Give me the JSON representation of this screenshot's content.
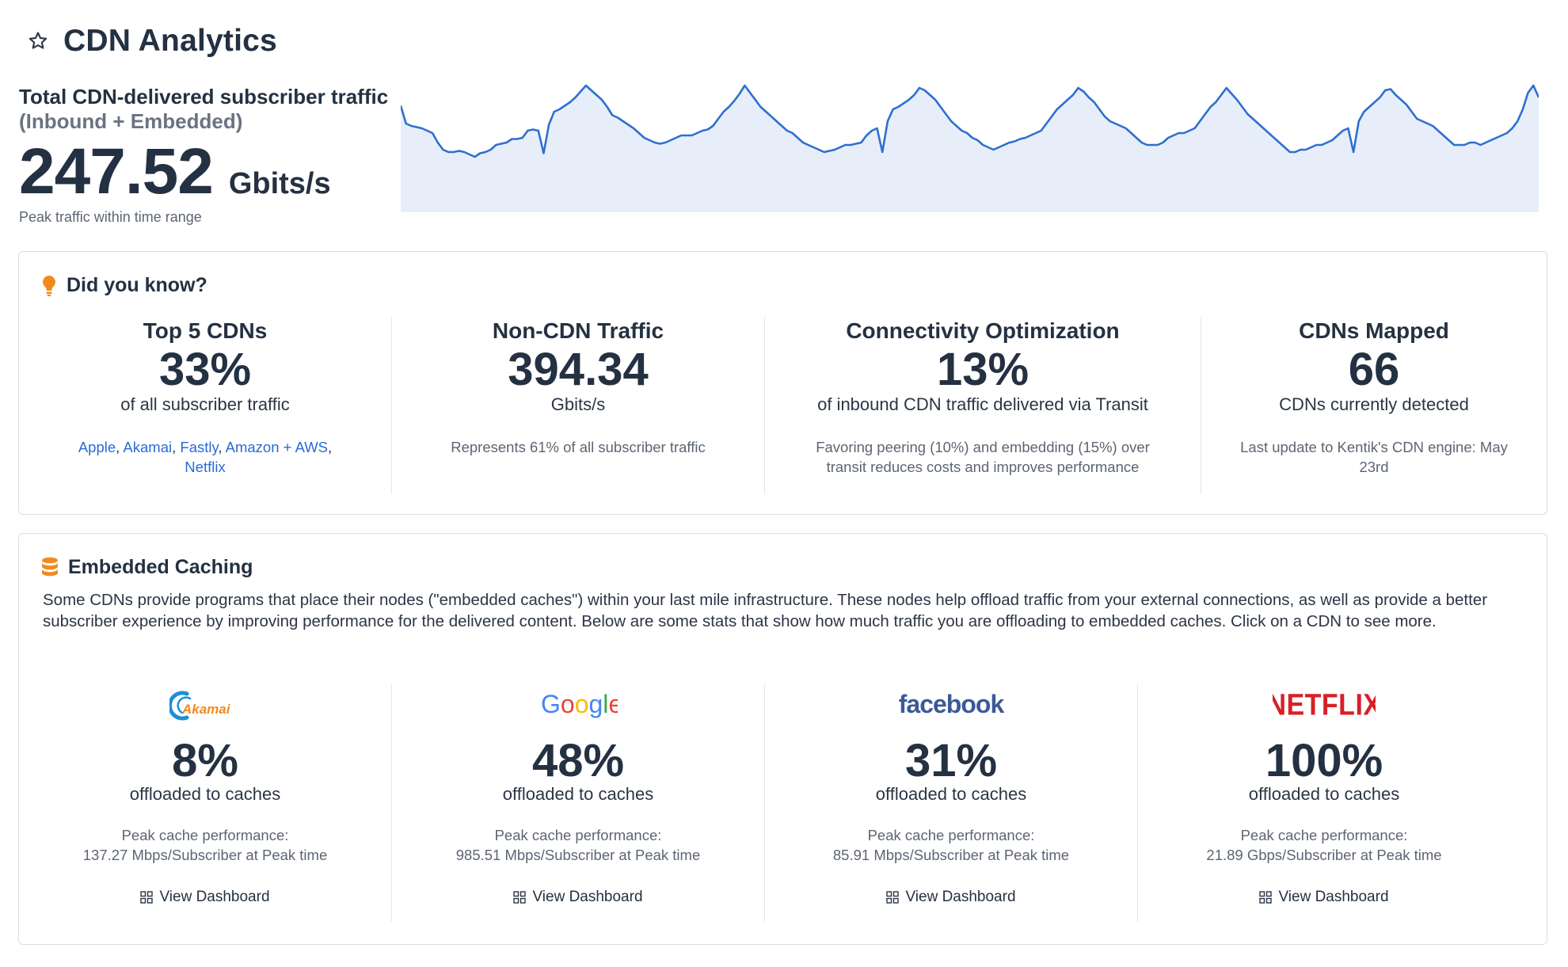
{
  "header": {
    "title": "CDN Analytics"
  },
  "summary": {
    "title_line1": "Total CDN-delivered subscriber traffic",
    "title_line2": "(Inbound + Embedded)",
    "value": "247.52",
    "unit": "Gbits/s",
    "caption": "Peak traffic within time range"
  },
  "sparkline": {
    "color": "#2f6fcf",
    "fill": "#e8eef9",
    "values": [
      0.83,
      0.68,
      0.66,
      0.65,
      0.64,
      0.62,
      0.6,
      0.52,
      0.46,
      0.44,
      0.44,
      0.45,
      0.44,
      0.42,
      0.4,
      0.43,
      0.44,
      0.46,
      0.5,
      0.51,
      0.52,
      0.55,
      0.55,
      0.56,
      0.62,
      0.63,
      0.62,
      0.43,
      0.67,
      0.78,
      0.8,
      0.83,
      0.86,
      0.9,
      0.95,
      1.0,
      0.96,
      0.92,
      0.88,
      0.82,
      0.75,
      0.73,
      0.7,
      0.67,
      0.64,
      0.6,
      0.56,
      0.54,
      0.52,
      0.51,
      0.52,
      0.54,
      0.56,
      0.58,
      0.58,
      0.58,
      0.6,
      0.62,
      0.63,
      0.66,
      0.72,
      0.78,
      0.82,
      0.87,
      0.93,
      1.0,
      0.94,
      0.88,
      0.82,
      0.78,
      0.74,
      0.7,
      0.66,
      0.62,
      0.6,
      0.56,
      0.52,
      0.5,
      0.48,
      0.46,
      0.44,
      0.45,
      0.46,
      0.48,
      0.5,
      0.5,
      0.51,
      0.52,
      0.58,
      0.62,
      0.64,
      0.44,
      0.7,
      0.8,
      0.82,
      0.85,
      0.88,
      0.92,
      0.98,
      0.96,
      0.92,
      0.88,
      0.82,
      0.76,
      0.7,
      0.66,
      0.62,
      0.6,
      0.56,
      0.54,
      0.5,
      0.48,
      0.46,
      0.48,
      0.5,
      0.52,
      0.53,
      0.55,
      0.56,
      0.58,
      0.6,
      0.62,
      0.68,
      0.74,
      0.8,
      0.84,
      0.88,
      0.92,
      0.98,
      0.95,
      0.9,
      0.86,
      0.8,
      0.74,
      0.7,
      0.68,
      0.66,
      0.64,
      0.6,
      0.56,
      0.52,
      0.5,
      0.5,
      0.5,
      0.52,
      0.56,
      0.58,
      0.6,
      0.6,
      0.62,
      0.64,
      0.7,
      0.76,
      0.82,
      0.86,
      0.92,
      0.98,
      0.93,
      0.88,
      0.82,
      0.76,
      0.72,
      0.68,
      0.64,
      0.6,
      0.56,
      0.52,
      0.48,
      0.44,
      0.44,
      0.46,
      0.46,
      0.48,
      0.5,
      0.5,
      0.52,
      0.54,
      0.58,
      0.62,
      0.64,
      0.44,
      0.7,
      0.78,
      0.82,
      0.86,
      0.9,
      0.96,
      0.97,
      0.92,
      0.88,
      0.84,
      0.78,
      0.72,
      0.7,
      0.68,
      0.66,
      0.62,
      0.58,
      0.54,
      0.5,
      0.5,
      0.5,
      0.52,
      0.52,
      0.5,
      0.52,
      0.54,
      0.56,
      0.58,
      0.6,
      0.64,
      0.7,
      0.8,
      0.94,
      1.0,
      0.9
    ]
  },
  "did_you_know": {
    "title": "Did you know?",
    "stats": [
      {
        "heading": "Top 5 CDNs",
        "value": "33%",
        "desc": "of all subscriber traffic",
        "links": [
          "Apple",
          "Akamai",
          "Fastly",
          "Amazon + AWS",
          "Netflix"
        ]
      },
      {
        "heading": "Non-CDN Traffic",
        "value": "394.34",
        "desc": "Gbits/s",
        "note": "Represents 61% of all subscriber traffic"
      },
      {
        "heading": "Connectivity Optimization",
        "value": "13%",
        "desc": "of inbound CDN traffic delivered via Transit",
        "note": "Favoring peering (10%) and embedding (15%) over transit reduces costs and improves performance"
      },
      {
        "heading": "CDNs Mapped",
        "value": "66",
        "desc": "CDNs currently detected",
        "note": "Last update to Kentik's CDN engine: May 23rd"
      }
    ]
  },
  "embedded": {
    "title": "Embedded Caching",
    "description": "Some CDNs provide programs that place their nodes (\"embedded caches\") within your last mile infrastructure. These nodes help offload traffic from your external connections, as well as provide a better subscriber experience by improving performance for the delivered content. Below are some stats that show how much traffic you are offloading to embedded caches. Click on a CDN to see more.",
    "cdns": [
      {
        "logo": "Akamai",
        "value": "8%",
        "desc": "offloaded to caches",
        "perf_label": "Peak cache performance:",
        "perf": "137.27 Mbps/Subscriber at Peak time",
        "action": "View Dashboard"
      },
      {
        "logo": "Google",
        "value": "48%",
        "desc": "offloaded to caches",
        "perf_label": "Peak cache performance:",
        "perf": "985.51 Mbps/Subscriber at Peak time",
        "action": "View Dashboard"
      },
      {
        "logo": "facebook",
        "value": "31%",
        "desc": "offloaded to caches",
        "perf_label": "Peak cache performance:",
        "perf": "85.91 Mbps/Subscriber at Peak time",
        "action": "View Dashboard"
      },
      {
        "logo": "NETFLIX",
        "value": "100%",
        "desc": "offloaded to caches",
        "perf_label": "Peak cache performance:",
        "perf": "21.89 Gbps/Subscriber at Peak time",
        "action": "View Dashboard"
      }
    ]
  },
  "colors": {
    "accent": "#2a6bd6",
    "bulb": "#f08a1c",
    "db": "#ef8a1e",
    "netflix": "#d81f26",
    "facebook": "#3b5998"
  }
}
